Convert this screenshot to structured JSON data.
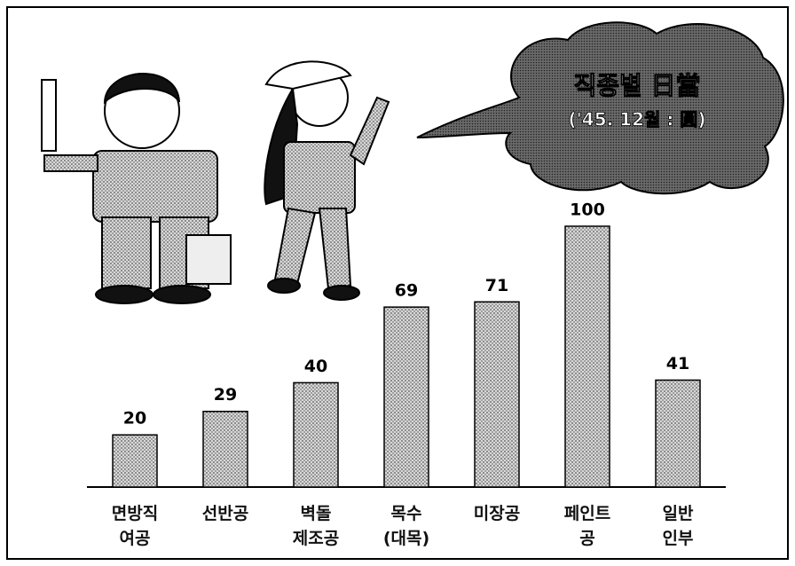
{
  "chart_data": {
    "type": "bar",
    "title": "직종별 日當",
    "subtitle": "('45. 12월 : 圓)",
    "categories": [
      "면방직\n여공",
      "선반공",
      "벽돌\n제조공",
      "목수\n(대목)",
      "미장공",
      "페인트\n공",
      "일반\n인부"
    ],
    "values": [
      20,
      29,
      40,
      69,
      71,
      100,
      41
    ],
    "color": "#bdbdbd"
  }
}
